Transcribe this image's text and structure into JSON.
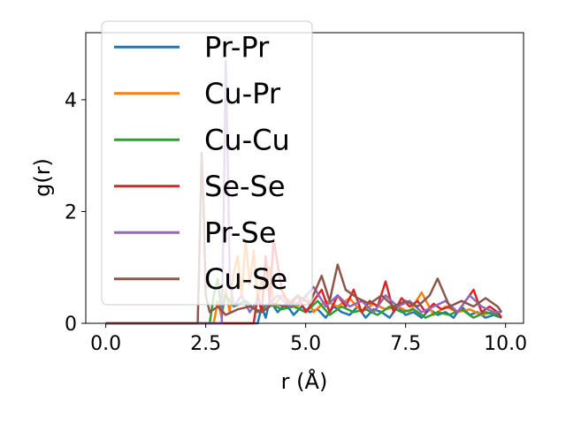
{
  "chart_data": {
    "type": "line",
    "title": "",
    "xlabel": "r (Å)",
    "ylabel": "g(r)",
    "xlim": [
      -0.5,
      10.45
    ],
    "ylim": [
      0,
      5.2
    ],
    "xticks": [
      0.0,
      2.5,
      5.0,
      7.5,
      10.0
    ],
    "xtick_labels": [
      "0.0",
      "2.5",
      "5.0",
      "7.5",
      "10.0"
    ],
    "yticks": [
      0,
      2,
      4
    ],
    "ytick_labels": [
      "0",
      "2",
      "4"
    ],
    "grid": false,
    "legend_position": "upper-left",
    "series": [
      {
        "name": "Pr-Pr",
        "color": "#1f77b4",
        "x": [
          0,
          3.8,
          3.9,
          4.0,
          4.1,
          4.3,
          4.5,
          4.7,
          4.9,
          5.1,
          5.3,
          5.5,
          5.7,
          5.9,
          6.1,
          6.3,
          6.5,
          6.7,
          6.9,
          7.1,
          7.3,
          7.5,
          7.7,
          7.9,
          8.1,
          8.3,
          8.5,
          8.7,
          8.9,
          9.1,
          9.3,
          9.5,
          9.7,
          9.9
        ],
        "y": [
          0,
          0,
          0.3,
          0.1,
          0.4,
          0.2,
          0.35,
          0.15,
          0.3,
          0.2,
          0.25,
          0.1,
          0.3,
          0.2,
          0.15,
          0.3,
          0.1,
          0.25,
          0.2,
          0.1,
          0.3,
          0.15,
          0.2,
          0.1,
          0.25,
          0.15,
          0.2,
          0.1,
          0.3,
          0.15,
          0.2,
          0.1,
          0.15,
          0.1
        ]
      },
      {
        "name": "Cu-Pr",
        "color": "#ff7f0e",
        "x": [
          0,
          2.7,
          2.8,
          2.9,
          3.0,
          3.1,
          3.2,
          3.3,
          3.4,
          3.5,
          3.6,
          3.7,
          3.8,
          3.9,
          4.0,
          4.1,
          4.2,
          4.4,
          4.6,
          4.8,
          5.0,
          5.2,
          5.5,
          5.8,
          6.1,
          6.4,
          6.7,
          7.0,
          7.3,
          7.6,
          7.9,
          8.2,
          8.5,
          8.8,
          9.1,
          9.4,
          9.7,
          9.9
        ],
        "y": [
          0,
          0,
          0.4,
          0.1,
          0.6,
          0.2,
          0.9,
          1.2,
          0.5,
          1.5,
          0.7,
          1.3,
          0.4,
          0.8,
          0.6,
          1.0,
          0.3,
          0.5,
          0.4,
          0.3,
          0.5,
          0.2,
          0.4,
          0.3,
          0.45,
          0.2,
          0.35,
          0.25,
          0.3,
          0.2,
          0.55,
          0.15,
          0.3,
          0.2,
          0.25,
          0.15,
          0.2,
          0.1
        ]
      },
      {
        "name": "Cu-Cu",
        "color": "#2ca02c",
        "x": [
          0,
          2.6,
          2.7,
          2.8,
          2.9,
          3.0,
          3.2,
          3.5,
          3.8,
          4.1,
          4.4,
          4.7,
          5.0,
          5.3,
          5.6,
          5.9,
          6.2,
          6.5,
          6.8,
          7.1,
          7.4,
          7.7,
          8.0,
          8.3,
          8.6,
          8.9,
          9.2,
          9.5,
          9.8,
          9.9
        ],
        "y": [
          0,
          0,
          0.5,
          0.8,
          0.2,
          0.5,
          0.3,
          0.4,
          0.2,
          0.35,
          0.25,
          0.3,
          0.2,
          0.4,
          0.15,
          0.3,
          0.2,
          0.25,
          0.15,
          0.3,
          0.2,
          0.25,
          0.1,
          0.2,
          0.15,
          0.25,
          0.1,
          0.2,
          0.15,
          0.1
        ]
      },
      {
        "name": "Se-Se",
        "color": "#d62728",
        "x": [
          0,
          3.7,
          3.8,
          3.9,
          4.0,
          4.1,
          4.2,
          4.4,
          4.6,
          4.8,
          5.0,
          5.2,
          5.4,
          5.6,
          5.8,
          6.0,
          6.2,
          6.4,
          6.6,
          6.8,
          7.0,
          7.2,
          7.4,
          7.6,
          7.8,
          8.0,
          8.2,
          8.4,
          8.6,
          8.8,
          9.0,
          9.2,
          9.4,
          9.6,
          9.8,
          9.9
        ],
        "y": [
          0,
          0,
          0.5,
          0.2,
          1.2,
          0.4,
          1.5,
          0.6,
          0.3,
          0.5,
          0.2,
          0.4,
          0.6,
          0.2,
          0.5,
          0.3,
          0.6,
          0.2,
          0.4,
          0.3,
          0.75,
          0.2,
          0.45,
          0.3,
          0.4,
          0.2,
          0.35,
          0.25,
          0.3,
          0.2,
          0.4,
          0.6,
          0.2,
          0.3,
          0.2,
          0.1
        ]
      },
      {
        "name": "Pr-Se",
        "color": "#9467bd",
        "x": [
          0,
          2.9,
          2.95,
          3.0,
          3.05,
          3.1,
          3.2,
          3.4,
          3.6,
          3.8,
          4.0,
          4.3,
          4.6,
          4.9,
          5.2,
          5.5,
          5.8,
          6.1,
          6.4,
          6.7,
          7.0,
          7.3,
          7.6,
          7.9,
          8.2,
          8.5,
          8.8,
          9.1,
          9.4,
          9.7,
          9.9
        ],
        "y": [
          0,
          0,
          2.0,
          4.7,
          3.0,
          0.8,
          0.3,
          0.5,
          0.2,
          0.4,
          0.3,
          0.5,
          0.3,
          0.4,
          0.65,
          0.3,
          0.5,
          0.3,
          0.4,
          0.2,
          0.5,
          0.3,
          0.4,
          0.2,
          0.3,
          0.4,
          0.2,
          0.5,
          0.3,
          0.2,
          0.2
        ]
      },
      {
        "name": "Cu-Se",
        "color": "#8c564b",
        "x": [
          0,
          2.3,
          2.35,
          2.4,
          2.45,
          2.5,
          2.6,
          2.8,
          3.0,
          3.3,
          3.6,
          3.9,
          4.2,
          4.5,
          4.8,
          5.1,
          5.4,
          5.6,
          5.8,
          6.0,
          6.3,
          6.6,
          6.9,
          7.2,
          7.5,
          7.8,
          8.1,
          8.3,
          8.6,
          8.9,
          9.2,
          9.5,
          9.8,
          9.9
        ],
        "y": [
          0,
          0,
          1.5,
          3.05,
          2.0,
          0.5,
          0.2,
          0.3,
          0.15,
          0.25,
          0.3,
          0.2,
          0.35,
          0.3,
          0.5,
          0.35,
          0.85,
          0.4,
          1.05,
          0.6,
          0.45,
          0.35,
          0.5,
          0.3,
          0.4,
          0.3,
          0.5,
          0.8,
          0.3,
          0.4,
          0.3,
          0.45,
          0.3,
          0.2
        ]
      }
    ]
  }
}
